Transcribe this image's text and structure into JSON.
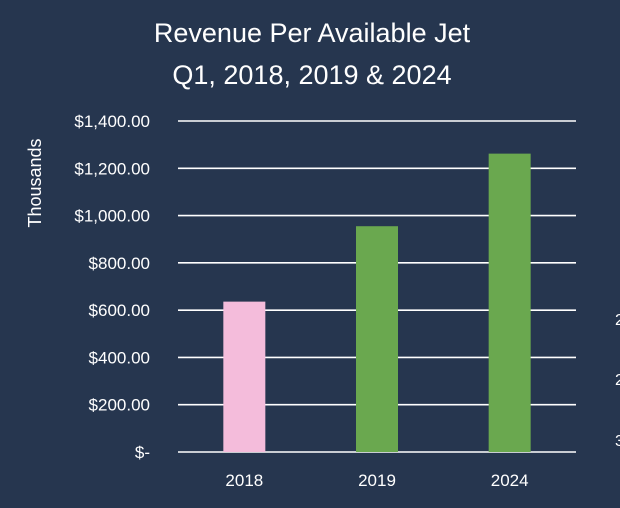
{
  "chart_data": {
    "type": "bar",
    "title": "Revenue Per Available Jet",
    "subtitle": "Q1, 2018, 2019 & 2024",
    "xlabel": "",
    "ylabel": "Thousands",
    "categories": [
      "2018",
      "2019",
      "2024"
    ],
    "values": [
      636,
      955,
      1262
    ],
    "colors": [
      "#f4bcdb",
      "#6aa84f",
      "#6aa84f"
    ],
    "ylim": [
      0,
      1400
    ],
    "yticks": [
      0,
      200,
      400,
      600,
      800,
      1000,
      1200,
      1400
    ],
    "ytick_labels": [
      "$-",
      "$200.00",
      "$400.00",
      "$600.00",
      "$800.00",
      "$1,000.00",
      "$1,200.00",
      "$1,400.00"
    ],
    "grid": true,
    "legend": "none"
  },
  "colors": {
    "background": "#26364f",
    "text": "#ffffff",
    "gridline": "#ffffff"
  },
  "edge_glyphs": [
    "2",
    "2",
    "3"
  ]
}
